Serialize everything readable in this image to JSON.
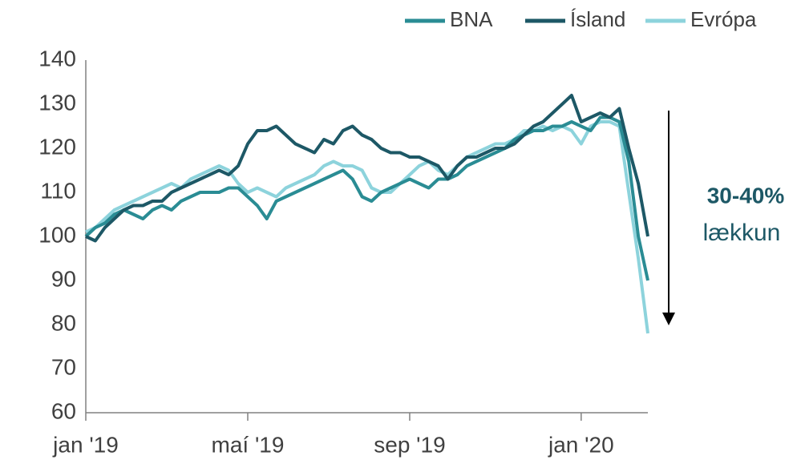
{
  "chart_data": {
    "type": "line",
    "categories": [
      "jan '19",
      null,
      null,
      null,
      null,
      null,
      null,
      null,
      null,
      null,
      null,
      null,
      null,
      null,
      null,
      null,
      null,
      "maí '19",
      null,
      null,
      null,
      null,
      null,
      null,
      null,
      null,
      null,
      null,
      null,
      null,
      null,
      null,
      null,
      null,
      "sep '19",
      null,
      null,
      null,
      null,
      null,
      null,
      null,
      null,
      null,
      null,
      null,
      null,
      null,
      null,
      null,
      null,
      null,
      "jan '20",
      null,
      null,
      null,
      null,
      null,
      null,
      null
    ],
    "series": [
      {
        "name": "BNA",
        "color": "#2a8c94",
        "values": [
          100,
          102,
          103,
          105,
          106,
          105,
          104,
          106,
          107,
          106,
          108,
          109,
          110,
          110,
          110,
          111,
          111,
          109,
          107,
          104,
          108,
          109,
          110,
          111,
          112,
          113,
          114,
          115,
          113,
          109,
          108,
          110,
          111,
          112,
          113,
          112,
          111,
          113,
          113,
          114,
          116,
          117,
          118,
          119,
          120,
          122,
          123,
          124,
          124,
          125,
          125,
          126,
          125,
          124,
          127,
          127,
          126,
          117,
          100,
          90
        ]
      },
      {
        "name": "Ísland",
        "color": "#1d5866",
        "values": [
          100,
          99,
          102,
          104,
          106,
          107,
          107,
          108,
          108,
          110,
          111,
          112,
          113,
          114,
          115,
          114,
          116,
          121,
          124,
          124,
          125,
          123,
          121,
          120,
          119,
          122,
          121,
          124,
          125,
          123,
          122,
          120,
          119,
          119,
          118,
          118,
          117,
          116,
          113,
          116,
          118,
          118,
          119,
          120,
          120,
          121,
          123,
          125,
          126,
          128,
          130,
          132,
          126,
          127,
          128,
          127,
          129,
          120,
          112,
          100
        ]
      },
      {
        "name": "Evrópa",
        "color": "#8dd3dc",
        "values": [
          101,
          102,
          104,
          106,
          107,
          108,
          109,
          110,
          111,
          112,
          111,
          113,
          114,
          115,
          116,
          115,
          112,
          110,
          111,
          110,
          109,
          111,
          112,
          113,
          114,
          116,
          117,
          116,
          116,
          115,
          111,
          110,
          110,
          112,
          114,
          116,
          117,
          115,
          114,
          116,
          118,
          119,
          120,
          121,
          121,
          122,
          124,
          124,
          125,
          124,
          125,
          124,
          121,
          125,
          126,
          126,
          125,
          110,
          95,
          78
        ]
      }
    ],
    "ylim": [
      60,
      140
    ],
    "yticks": [
      60,
      70,
      80,
      90,
      100,
      110,
      120,
      130,
      140
    ],
    "annotations": [
      "30-40%",
      "lækkun"
    ],
    "legend": "top-right"
  }
}
